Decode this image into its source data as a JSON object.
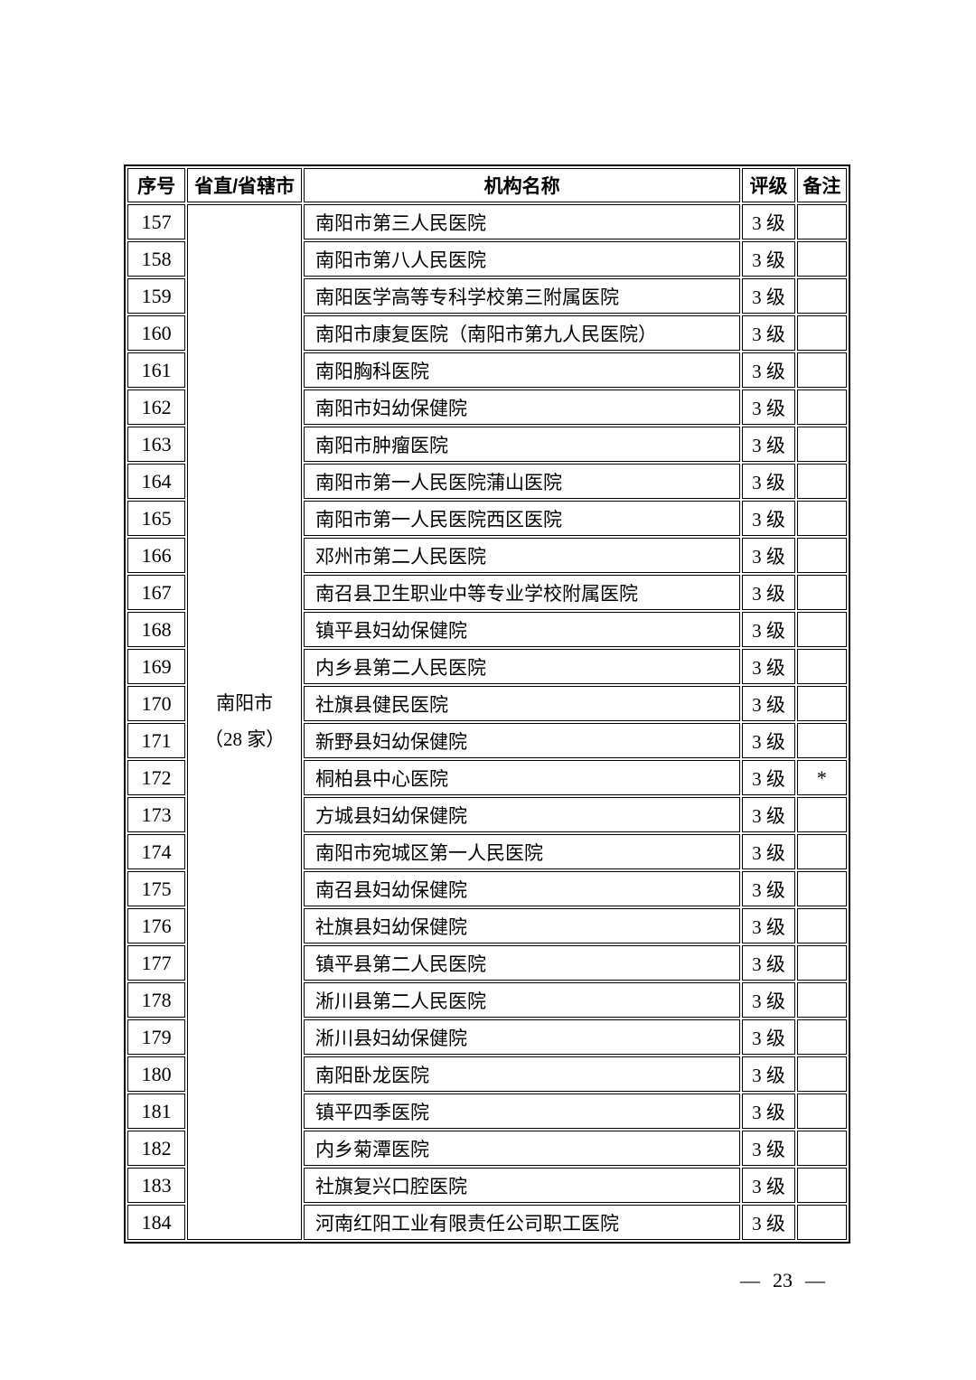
{
  "table": {
    "headers": [
      "序号",
      "省直/省辖市",
      "机构名称",
      "评级",
      "备注"
    ],
    "group": {
      "city": "南阳市",
      "count_label": "（28 家）"
    },
    "rows": [
      {
        "no": "157",
        "name": "南阳市第三人民医院",
        "rating": "3 级",
        "remark": ""
      },
      {
        "no": "158",
        "name": "南阳市第八人民医院",
        "rating": "3 级",
        "remark": ""
      },
      {
        "no": "159",
        "name": "南阳医学高等专科学校第三附属医院",
        "rating": "3 级",
        "remark": ""
      },
      {
        "no": "160",
        "name": "南阳市康复医院（南阳市第九人民医院）",
        "rating": "3 级",
        "remark": ""
      },
      {
        "no": "161",
        "name": "南阳胸科医院",
        "rating": "3 级",
        "remark": ""
      },
      {
        "no": "162",
        "name": "南阳市妇幼保健院",
        "rating": "3 级",
        "remark": ""
      },
      {
        "no": "163",
        "name": "南阳市肿瘤医院",
        "rating": "3 级",
        "remark": ""
      },
      {
        "no": "164",
        "name": "南阳市第一人民医院蒲山医院",
        "rating": "3 级",
        "remark": ""
      },
      {
        "no": "165",
        "name": "南阳市第一人民医院西区医院",
        "rating": "3 级",
        "remark": ""
      },
      {
        "no": "166",
        "name": "邓州市第二人民医院",
        "rating": "3 级",
        "remark": ""
      },
      {
        "no": "167",
        "name": "南召县卫生职业中等专业学校附属医院",
        "rating": "3 级",
        "remark": ""
      },
      {
        "no": "168",
        "name": "镇平县妇幼保健院",
        "rating": "3 级",
        "remark": ""
      },
      {
        "no": "169",
        "name": "内乡县第二人民医院",
        "rating": "3 级",
        "remark": ""
      },
      {
        "no": "170",
        "name": "社旗县健民医院",
        "rating": "3 级",
        "remark": ""
      },
      {
        "no": "171",
        "name": "新野县妇幼保健院",
        "rating": "3 级",
        "remark": ""
      },
      {
        "no": "172",
        "name": "桐柏县中心医院",
        "rating": "3 级",
        "remark": "*"
      },
      {
        "no": "173",
        "name": "方城县妇幼保健院",
        "rating": "3 级",
        "remark": ""
      },
      {
        "no": "174",
        "name": "南阳市宛城区第一人民医院",
        "rating": "3 级",
        "remark": ""
      },
      {
        "no": "175",
        "name": "南召县妇幼保健院",
        "rating": "3 级",
        "remark": ""
      },
      {
        "no": "176",
        "name": "社旗县妇幼保健院",
        "rating": "3 级",
        "remark": ""
      },
      {
        "no": "177",
        "name": "镇平县第二人民医院",
        "rating": "3 级",
        "remark": ""
      },
      {
        "no": "178",
        "name": "淅川县第二人民医院",
        "rating": "3 级",
        "remark": ""
      },
      {
        "no": "179",
        "name": "淅川县妇幼保健院",
        "rating": "3 级",
        "remark": ""
      },
      {
        "no": "180",
        "name": "南阳卧龙医院",
        "rating": "3 级",
        "remark": ""
      },
      {
        "no": "181",
        "name": "镇平四季医院",
        "rating": "3 级",
        "remark": ""
      },
      {
        "no": "182",
        "name": "内乡菊潭医院",
        "rating": "3 级",
        "remark": ""
      },
      {
        "no": "183",
        "name": "社旗复兴口腔医院",
        "rating": "3 级",
        "remark": ""
      },
      {
        "no": "184",
        "name": "河南红阳工业有限责任公司职工医院",
        "rating": "3 级",
        "remark": ""
      }
    ]
  },
  "footer": {
    "left_dash": "—",
    "page_number": "23",
    "right_dash": "—"
  }
}
